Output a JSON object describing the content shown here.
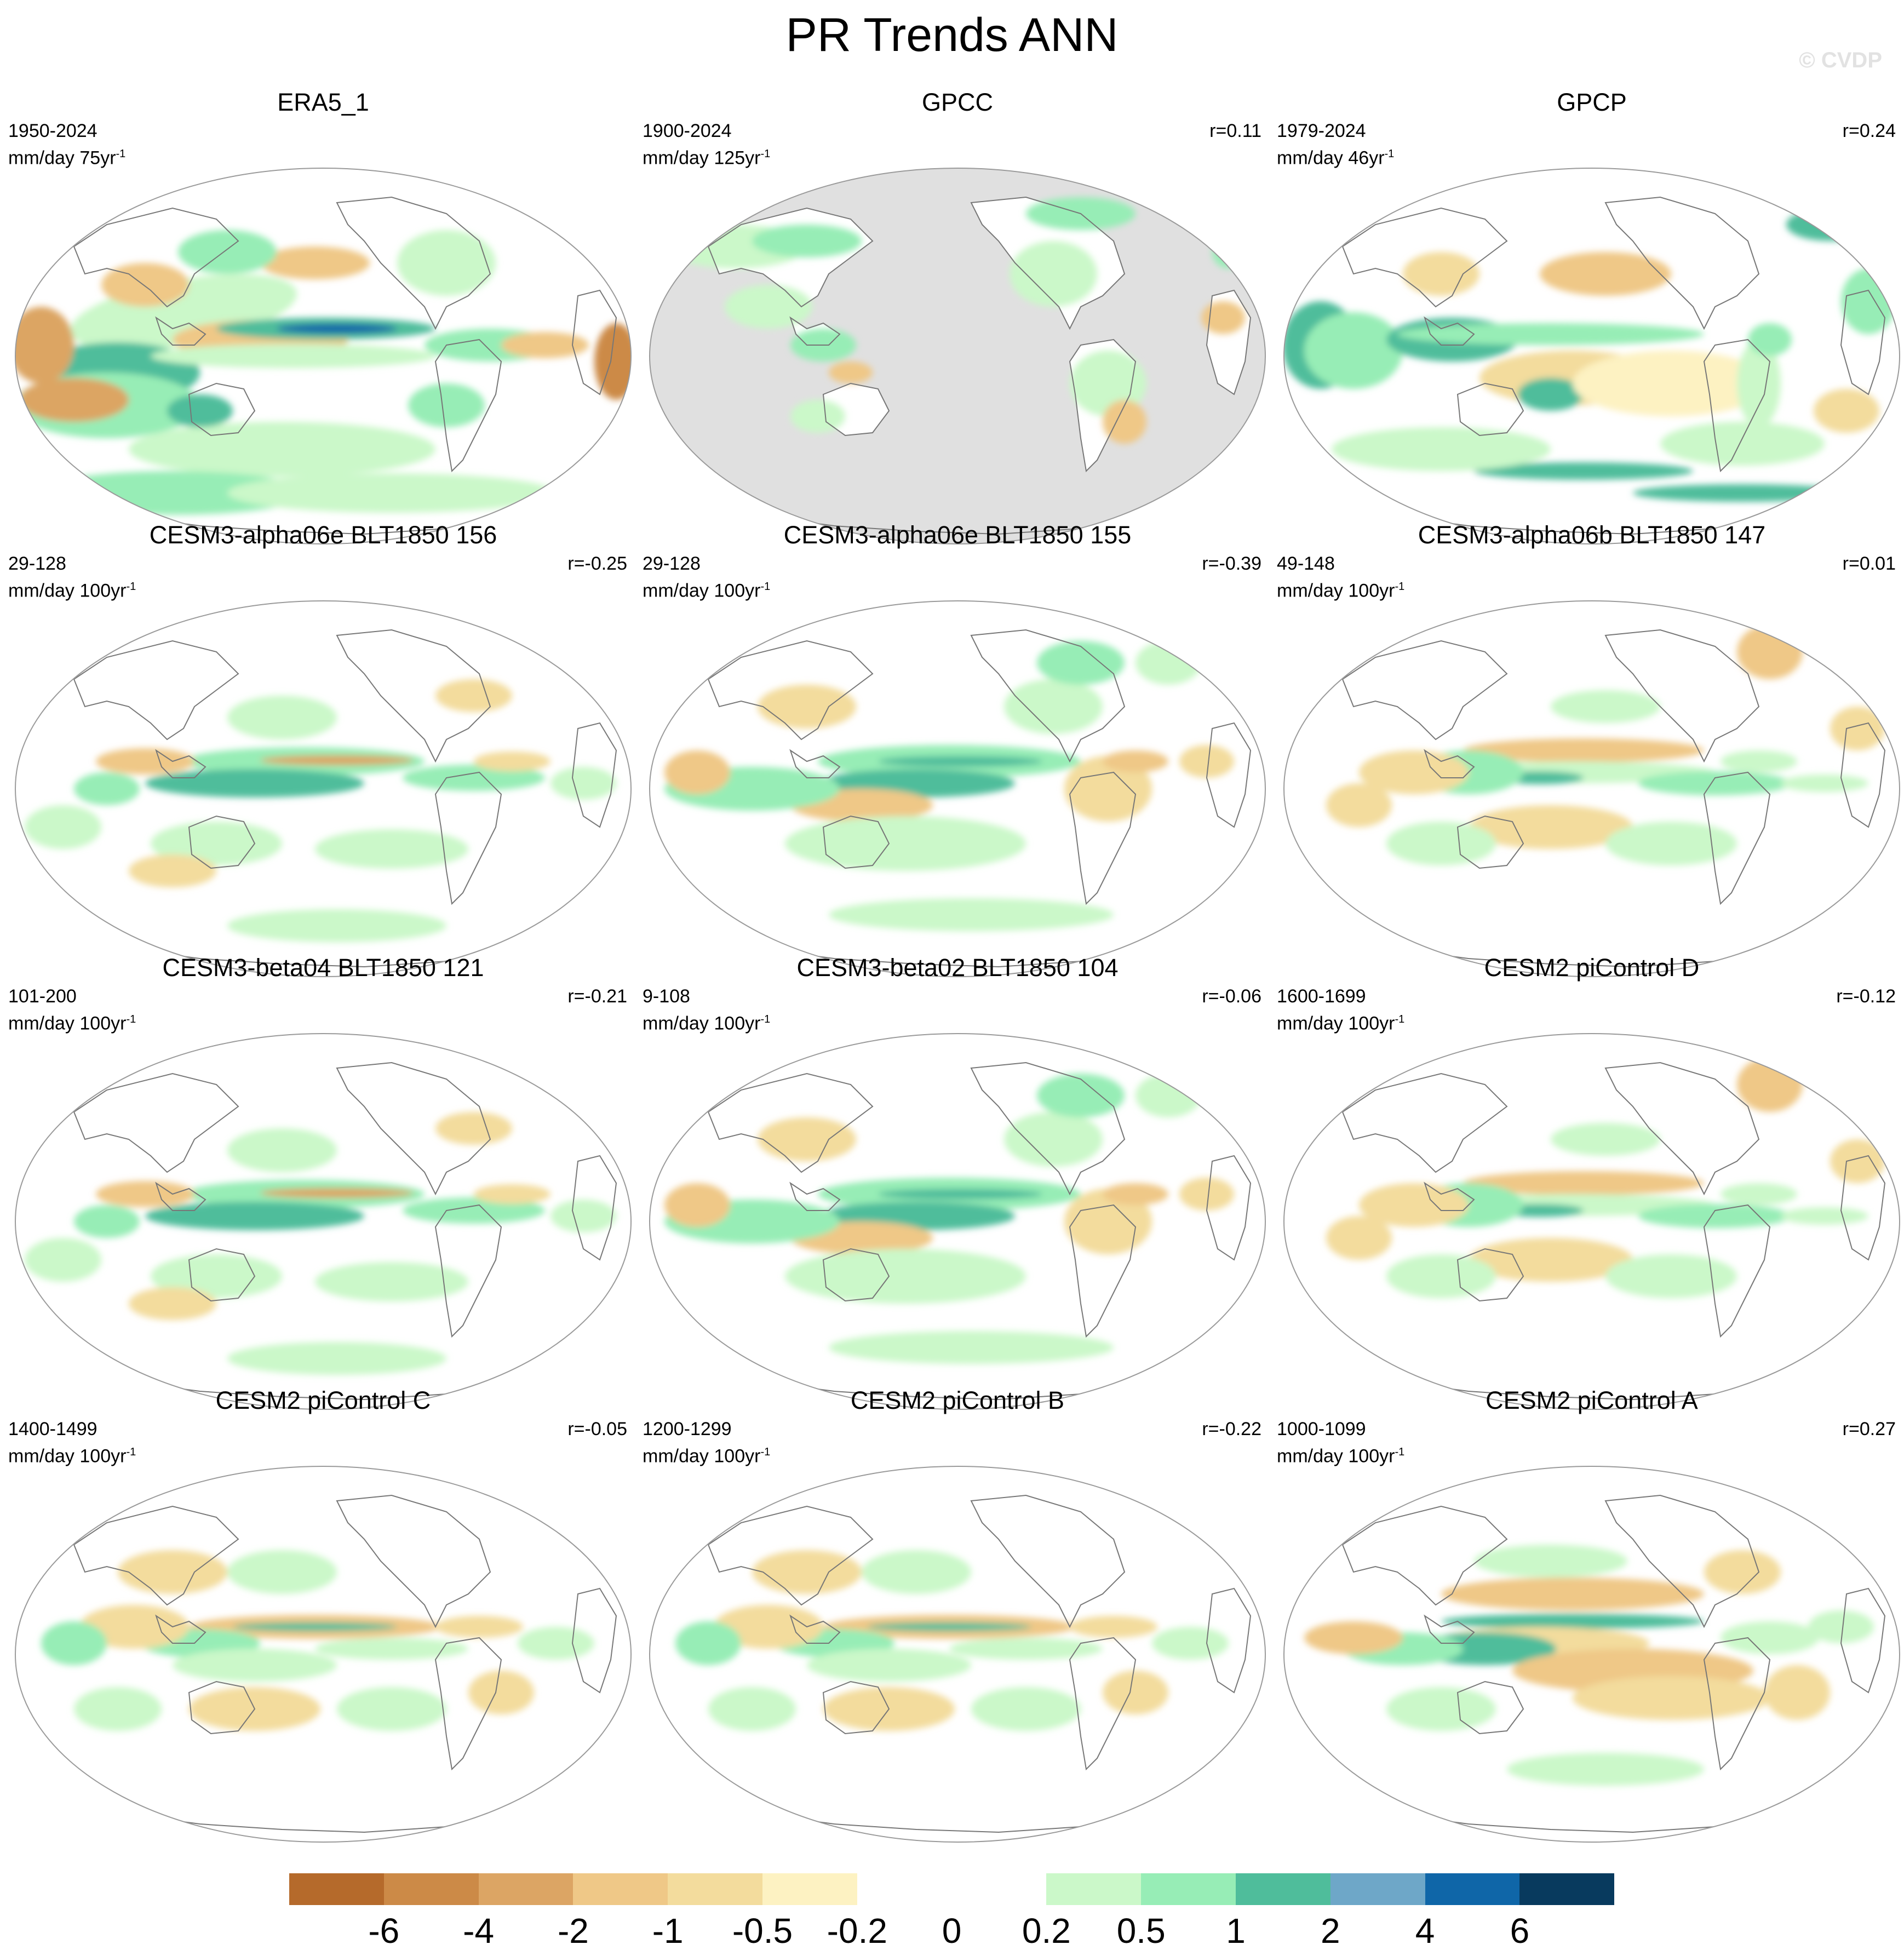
{
  "title": "PR Trends ANN",
  "watermark": "© CVDP",
  "panels": [
    {
      "name": "ERA5_1",
      "period": "1950-2024",
      "units": "mm/day",
      "span": "75yr",
      "sup": "-1",
      "r": "",
      "style": "era5"
    },
    {
      "name": "GPCC",
      "period": "1900-2024",
      "units": "mm/day",
      "span": "125yr",
      "sup": "-1",
      "r": "r=0.11",
      "style": "gpcc"
    },
    {
      "name": "GPCP",
      "period": "1979-2024",
      "units": "mm/day",
      "span": "46yr",
      "sup": "-1",
      "r": "r=0.24",
      "style": "gpcp"
    },
    {
      "name": "CESM3-alpha06e BLT1850 156",
      "period": "29-128",
      "units": "mm/day",
      "span": "100yr",
      "sup": "-1",
      "r": "r=-0.25",
      "style": "model_a"
    },
    {
      "name": "CESM3-alpha06e BLT1850 155",
      "period": "29-128",
      "units": "mm/day",
      "span": "100yr",
      "sup": "-1",
      "r": "r=-0.39",
      "style": "model_b"
    },
    {
      "name": "CESM3-alpha06b BLT1850 147",
      "period": "49-148",
      "units": "mm/day",
      "span": "100yr",
      "sup": "-1",
      "r": "r=0.01",
      "style": "model_c"
    },
    {
      "name": "CESM3-beta04 BLT1850 121",
      "period": "101-200",
      "units": "mm/day",
      "span": "100yr",
      "sup": "-1",
      "r": "r=-0.21",
      "style": "model_a"
    },
    {
      "name": "CESM3-beta02 BLT1850 104",
      "period": "9-108",
      "units": "mm/day",
      "span": "100yr",
      "sup": "-1",
      "r": "r=-0.06",
      "style": "model_b"
    },
    {
      "name": "CESM2 piControl D",
      "period": "1600-1699",
      "units": "mm/day",
      "span": "100yr",
      "sup": "-1",
      "r": "r=-0.12",
      "style": "model_c"
    },
    {
      "name": "CESM2 piControl C",
      "period": "1400-1499",
      "units": "mm/day",
      "span": "100yr",
      "sup": "-1",
      "r": "r=-0.05",
      "style": "model_d"
    },
    {
      "name": "CESM2 piControl B",
      "period": "1200-1299",
      "units": "mm/day",
      "span": "100yr",
      "sup": "-1",
      "r": "r=-0.22",
      "style": "model_d"
    },
    {
      "name": "CESM2 piControl A",
      "period": "1000-1099",
      "units": "mm/day",
      "span": "100yr",
      "sup": "-1",
      "r": "r=0.27",
      "style": "model_e"
    }
  ],
  "colorbar": {
    "colors": [
      "#b56a2b",
      "#cc8a47",
      "#dca564",
      "#efc887",
      "#f3dc9d",
      "#fdf2c2",
      "#ffffff",
      "#ffffff",
      "#cbf8c9",
      "#97edb6",
      "#4fbd9b",
      "#6ea7c8",
      "#0f66a8",
      "#083a5e"
    ],
    "tick_labels": [
      "-6",
      "-4",
      "-2",
      "-1",
      "-0.5",
      "-0.2",
      "0",
      "0.2",
      "0.5",
      "1",
      "2",
      "4",
      "6"
    ]
  }
}
